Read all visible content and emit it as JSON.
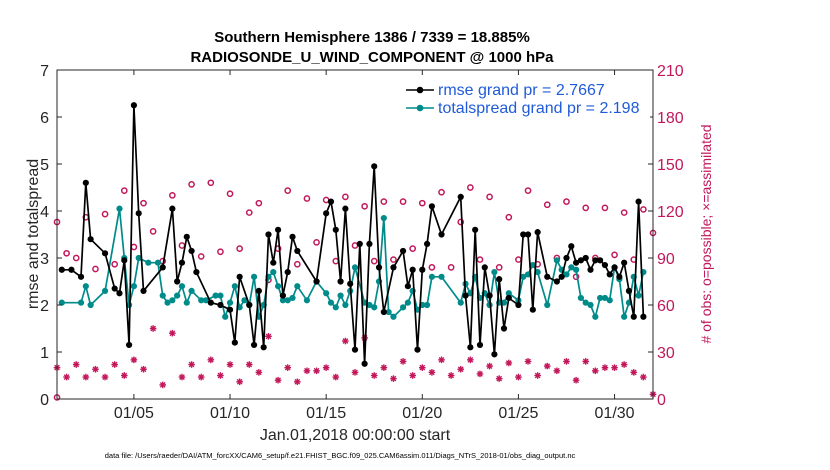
{
  "chart_data": {
    "type": "line",
    "title": "Southern Hemisphere 1386 / 7339 = 18.885%",
    "subtitle": "RADIOSONDE_U_WIND_COMPONENT @ 1000 hPa",
    "xlabel": "Jan.01,2018 00:00:00 start",
    "ylabel": "rmse and totalspread",
    "ylabel_right": "# of obs: o=possible; ×=assimilated",
    "xlim": [
      1,
      32
    ],
    "ylim": [
      0,
      7
    ],
    "ylim_right": [
      0,
      210
    ],
    "x_tick_values": [
      5,
      10,
      15,
      20,
      25,
      30
    ],
    "x_tick_labels": [
      "01/05",
      "01/10",
      "01/15",
      "01/20",
      "01/25",
      "01/30"
    ],
    "y_ticks": [
      "0",
      "1",
      "2",
      "3",
      "4",
      "5",
      "6",
      "7"
    ],
    "y_right_ticks": [
      "0",
      "30",
      "60",
      "90",
      "120",
      "150",
      "180",
      "210"
    ],
    "grid": false,
    "legend_position": "top-right",
    "footnote": "data file: /Users/raeder/DAI/ATM_forcXX/CAM6_setup/f.e21.FHIST_BGC.f09_025.CAM6assim.011/Diags_NTrS_2018-01/obs_diag_output.nc",
    "series": [
      {
        "name": "rmse grand pr = 2.7667",
        "color": "#000000",
        "x": [
          1.25,
          1.75,
          2.25,
          2.5,
          2.75,
          3.5,
          4,
          4.25,
          4.5,
          4.75,
          5,
          5.25,
          5.5,
          6.5,
          7,
          7.25,
          7.5,
          7.75,
          8,
          8.25,
          9,
          9.5,
          10,
          10.25,
          10.5,
          11,
          11.25,
          11.5,
          11.75,
          12,
          12.25,
          12.5,
          12.75,
          13,
          13.25,
          13.5,
          14.5,
          15,
          15.25,
          15.5,
          15.75,
          16,
          16.25,
          16.5,
          16.75,
          17,
          17.25,
          17.5,
          17.75,
          18,
          18.5,
          19,
          19.25,
          19.5,
          19.75,
          20,
          20.25,
          20.5,
          21,
          22,
          22.25,
          22.5,
          22.75,
          23,
          23.25,
          23.5,
          23.75,
          24,
          24.25,
          24.5,
          25,
          25.25,
          25.5,
          25.75,
          26,
          26.5,
          27,
          27.25,
          27.5,
          27.75,
          28,
          28.25,
          28.5,
          28.75,
          29,
          29.25,
          29.5,
          29.75,
          30,
          30.25,
          30.5,
          30.75,
          31,
          31.25,
          31.5
        ],
        "y": [
          2.75,
          2.75,
          2.6,
          4.6,
          3.4,
          3.1,
          2.35,
          2.25,
          2.95,
          1.15,
          6.25,
          3.95,
          2.3,
          2.8,
          4.05,
          2.5,
          2.9,
          3.45,
          3.15,
          2.7,
          2.05,
          2.0,
          1.9,
          1.2,
          2.6,
          2.0,
          1.15,
          2.3,
          1.1,
          3.5,
          2.9,
          3.6,
          2.2,
          2.7,
          3.45,
          3.15,
          2.5,
          3.95,
          4.2,
          3.6,
          2.5,
          4.05,
          2.45,
          1.05,
          3.3,
          0.75,
          3.3,
          4.95,
          2.8,
          1.85,
          2.8,
          3.15,
          2.4,
          2.75,
          1.05,
          2.75,
          3.3,
          4.1,
          3.5,
          4.3,
          2.2,
          1.1,
          3.6,
          1.15,
          2.8,
          2.2,
          0.95,
          2.55,
          1.5,
          2.15,
          2.0,
          3.5,
          3.5,
          1.9,
          3.55,
          2.6,
          2.5,
          2.6,
          3.0,
          3.25,
          2.9,
          2.95,
          3.0,
          2.75,
          2.95,
          2.95,
          2.85,
          2.65,
          2.8,
          2.6,
          2.9,
          2.3,
          1.75,
          4.2,
          1.75
        ]
      },
      {
        "name": "totalspread grand pr = 2.198",
        "color": "#008b8b",
        "x": [
          1.25,
          2.25,
          2.5,
          2.75,
          3.5,
          4.25,
          4.5,
          4.75,
          5,
          5.25,
          5.75,
          6.25,
          6.5,
          6.75,
          7,
          7.25,
          7.5,
          7.75,
          8,
          8.5,
          8.75,
          9.25,
          9.5,
          9.75,
          10,
          10.25,
          10.5,
          10.75,
          11,
          11.25,
          11.5,
          11.75,
          12,
          12.25,
          12.5,
          12.75,
          13,
          13.25,
          13.5,
          14,
          14.5,
          15,
          15.25,
          15.5,
          15.75,
          16,
          16.25,
          16.5,
          17,
          17.25,
          17.5,
          17.75,
          18,
          18.25,
          18.5,
          19,
          19.25,
          19.5,
          19.75,
          20,
          20.25,
          20.5,
          21,
          22,
          22.25,
          22.5,
          22.75,
          23,
          23.25,
          23.5,
          23.75,
          24,
          24.25,
          24.5,
          25,
          25.25,
          25.5,
          25.75,
          26,
          26.5,
          27,
          27.25,
          27.5,
          27.75,
          28,
          28.25,
          28.5,
          28.75,
          29,
          29.25,
          29.5,
          29.75,
          30,
          30.25,
          30.5,
          30.75,
          31,
          31.25,
          31.5
        ],
        "y": [
          2.05,
          2.05,
          2.4,
          2.0,
          2.3,
          4.05,
          3.0,
          2.0,
          2.4,
          3.0,
          2.9,
          2.9,
          2.2,
          2.05,
          2.1,
          2.2,
          2.4,
          2.05,
          2.3,
          2.1,
          2.1,
          2.2,
          2.2,
          1.75,
          2.05,
          2.4,
          1.95,
          2.1,
          2.0,
          2.6,
          1.75,
          2.0,
          2.6,
          2.7,
          2.4,
          2.1,
          2.1,
          2.15,
          2.4,
          2.1,
          2.5,
          2.25,
          2.05,
          1.95,
          2.2,
          2.0,
          2.3,
          2.8,
          2.05,
          2.0,
          1.95,
          2.5,
          3.85,
          1.85,
          1.75,
          1.95,
          2.05,
          2.3,
          1.9,
          2.0,
          2.0,
          2.6,
          2.6,
          2.05,
          2.45,
          2.25,
          2.6,
          2.15,
          2.25,
          2.0,
          2.7,
          2.05,
          2.05,
          2.25,
          2.1,
          2.6,
          2.65,
          2.85,
          2.7,
          2.0,
          2.95,
          2.75,
          2.65,
          2.8,
          2.75,
          2.15,
          2.05,
          2.0,
          1.75,
          2.15,
          2.15,
          2.1,
          2.8,
          2.55,
          1.75,
          2.05,
          2.6,
          2.2,
          2.7
        ]
      },
      {
        "name": "possible obs",
        "color": "#c2185b",
        "axis": "right",
        "marker": "circle",
        "x": [
          1,
          1,
          1.5,
          2,
          2.5,
          3,
          3.5,
          4,
          4.5,
          5,
          5.5,
          6,
          6.5,
          7,
          7.5,
          8,
          8.5,
          9,
          9.5,
          10,
          10.5,
          11,
          11.5,
          12,
          12.5,
          13,
          13.5,
          14,
          14.5,
          15,
          15.5,
          16,
          16.5,
          17,
          17.5,
          18,
          18.5,
          19,
          19.5,
          20,
          20.5,
          21,
          21.5,
          22,
          22.5,
          23,
          23.5,
          24,
          24.5,
          25,
          25.5,
          26,
          26.5,
          27,
          27.5,
          28,
          28.5,
          29,
          29.5,
          30,
          30.5,
          31,
          31.5,
          32
        ],
        "y": [
          113,
          1,
          93,
          90,
          116,
          83,
          118,
          86,
          133,
          97,
          125,
          107,
          88,
          130,
          98,
          137,
          91,
          138,
          94,
          131,
          96,
          119,
          125,
          76,
          96,
          133,
          86,
          128,
          100,
          127,
          88,
          129,
          98,
          123,
          88,
          126,
          89,
          126,
          96,
          125,
          84,
          132,
          84,
          113,
          135,
          89,
          129,
          84,
          116,
          89,
          133,
          86,
          124,
          90,
          126,
          78,
          122,
          90,
          122,
          92,
          119,
          89,
          121,
          106
        ]
      },
      {
        "name": "assimilated obs",
        "color": "#c2185b",
        "axis": "right",
        "marker": "asterisk",
        "x": [
          1,
          1.5,
          2,
          2.5,
          3,
          3.5,
          4,
          4.5,
          5,
          5.5,
          6,
          6.5,
          7,
          7.5,
          8,
          8.5,
          9,
          9.5,
          10,
          10.5,
          11,
          11.5,
          12,
          12.5,
          13,
          13.5,
          14,
          14.5,
          15,
          15.5,
          16,
          16.5,
          17,
          17.5,
          18,
          18.5,
          19,
          19.5,
          20,
          20.5,
          21,
          21.5,
          22,
          22.5,
          23,
          23.5,
          24,
          24.5,
          25,
          25.5,
          26,
          26.5,
          27,
          27.5,
          28,
          28.5,
          29,
          29.5,
          30,
          30.5,
          31,
          31.5,
          32
        ],
        "y": [
          20,
          14,
          22,
          14,
          19,
          14,
          22,
          15,
          25,
          19,
          45,
          9,
          42,
          14,
          22,
          14,
          25,
          15,
          22,
          11,
          22,
          17,
          40,
          12,
          20,
          11,
          18,
          18,
          20,
          14,
          37,
          17,
          39,
          15,
          20,
          13,
          24,
          15,
          20,
          17,
          25,
          15,
          19,
          25,
          16,
          21,
          13,
          23,
          14,
          24,
          15,
          21,
          18,
          24,
          12,
          24,
          18,
          20,
          20,
          22,
          17,
          14,
          3
        ]
      }
    ]
  }
}
